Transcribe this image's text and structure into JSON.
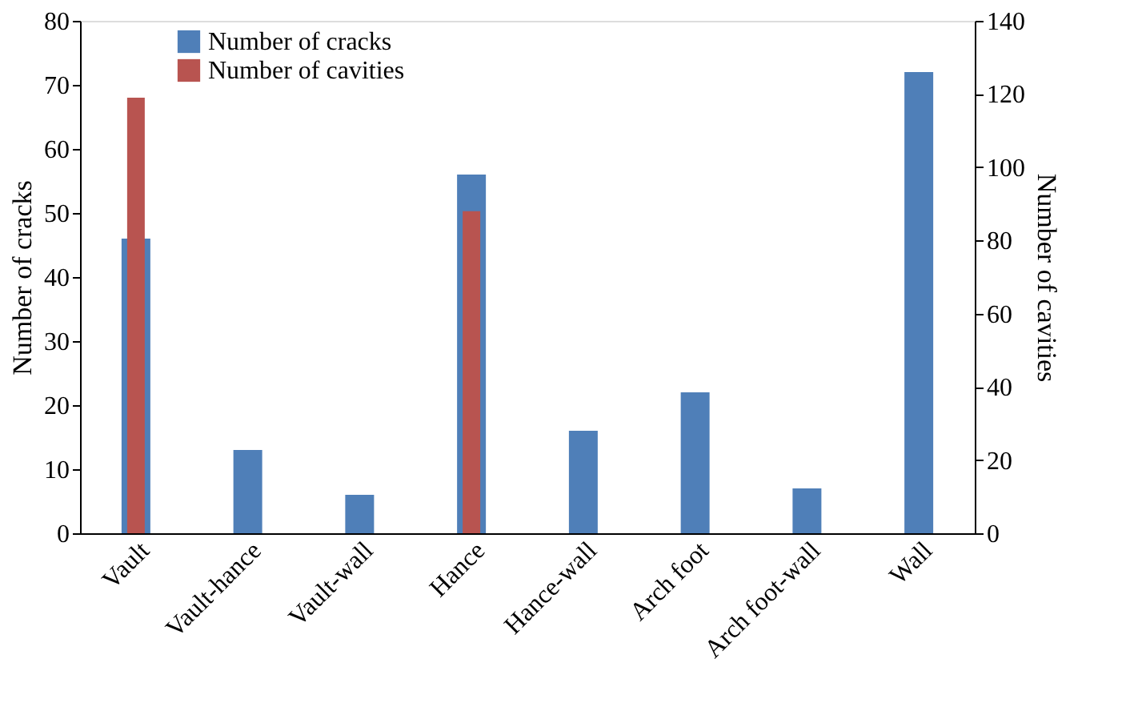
{
  "chart_data": {
    "type": "bar",
    "categories": [
      "Vault",
      "Vault-hance",
      "Vault-wall",
      "Hance",
      "Hance-wall",
      "Arch foot",
      "Arch foot-wall",
      "Wall"
    ],
    "series": [
      {
        "name": "Number of cracks",
        "color": "#4f7fb8",
        "values": [
          46,
          13,
          6,
          56,
          16,
          22,
          7,
          72
        ]
      },
      {
        "name": "Number of cavities",
        "color": "#b85450",
        "axis": "y2",
        "values": [
          119,
          null,
          null,
          88,
          null,
          null,
          null,
          null
        ]
      }
    ],
    "ylabel": "Number of cracks",
    "y2label": "Number of cavities",
    "ylim": [
      0,
      80
    ],
    "yticks": [
      0,
      10,
      20,
      30,
      40,
      50,
      60,
      70,
      80
    ],
    "y2lim": [
      0,
      140
    ],
    "y2ticks": [
      0,
      20,
      40,
      60,
      80,
      100,
      120,
      140
    ],
    "legend": "top left",
    "grid": false
  }
}
